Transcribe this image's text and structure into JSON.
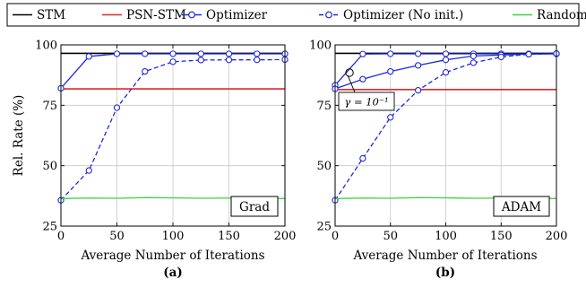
{
  "legend": [
    {
      "name": "STM",
      "color": "#000000",
      "style": "solid",
      "marker": false
    },
    {
      "name": "PSN-STM",
      "color": "#e3262e",
      "style": "solid",
      "marker": false
    },
    {
      "name": "Optimizer",
      "color": "#1f2ad6",
      "style": "solid",
      "marker": true
    },
    {
      "name": "Optimizer (No init.)",
      "color": "#1f2ad6",
      "style": "dashed",
      "marker": true
    },
    {
      "name": "Random",
      "color": "#3bd23b",
      "style": "solid",
      "marker": false
    }
  ],
  "chart_data": [
    {
      "type": "line",
      "panel": "(a)",
      "box_label": "Grad",
      "xlabel": "Average Number of Iterations",
      "ylabel": "Rel. Rate (%)",
      "xlim": [
        0,
        200
      ],
      "ylim": [
        25,
        100
      ],
      "xticks": [
        0,
        50,
        100,
        150,
        200
      ],
      "yticks": [
        25,
        50,
        75,
        100
      ],
      "grid": true,
      "series": [
        {
          "name": "STM",
          "x": [
            0,
            200
          ],
          "y": [
            96.5,
            96.5
          ]
        },
        {
          "name": "PSN-STM",
          "x": [
            0,
            200
          ],
          "y": [
            81.8,
            81.8
          ]
        },
        {
          "name": "Optimizer",
          "x": [
            0,
            25,
            50,
            75,
            100,
            125,
            150,
            175,
            200
          ],
          "y": [
            82,
            95.2,
            96.3,
            96.3,
            96.3,
            96.3,
            96.3,
            96.3,
            96.3
          ]
        },
        {
          "name": "Optimizer (No init.)",
          "x": [
            0,
            25,
            50,
            75,
            100,
            125,
            150,
            175,
            200
          ],
          "y": [
            35.7,
            48,
            74,
            89,
            93,
            93.7,
            93.8,
            93.8,
            93.9
          ]
        },
        {
          "name": "Random",
          "x": [
            0,
            25,
            50,
            75,
            100,
            125,
            150,
            175,
            200
          ],
          "y": [
            36.4,
            36.6,
            36.5,
            36.8,
            36.7,
            36.5,
            36.6,
            36.5,
            36.4
          ]
        }
      ]
    },
    {
      "type": "line",
      "panel": "(b)",
      "box_label": "ADAM",
      "xlabel": "Average Number of Iterations",
      "ylabel": "",
      "xlim": [
        0,
        200
      ],
      "ylim": [
        25,
        100
      ],
      "xticks": [
        0,
        50,
        100,
        150,
        200
      ],
      "yticks": [
        25,
        50,
        75,
        100
      ],
      "grid": true,
      "annotation": {
        "text": "γ = 10⁻¹",
        "x": 13,
        "y": 88.5
      },
      "series": [
        {
          "name": "STM",
          "x": [
            0,
            200
          ],
          "y": [
            96.5,
            96.5
          ]
        },
        {
          "name": "PSN-STM",
          "x": [
            0,
            200
          ],
          "y": [
            81.5,
            81.5
          ]
        },
        {
          "name": "Optimizer",
          "x": [
            0,
            25,
            50,
            75,
            100,
            125,
            150,
            175,
            200
          ],
          "y": [
            83.3,
            96.2,
            96.3,
            96.3,
            96.3,
            96.3,
            96.3,
            96.3,
            96.3
          ]
        },
        {
          "name": "Optimizer",
          "x": [
            0,
            25,
            50,
            75,
            100,
            125,
            150,
            175,
            200
          ],
          "y": [
            81.8,
            85.8,
            89,
            91.5,
            93.8,
            95.4,
            95.8,
            96.2,
            96.3
          ]
        },
        {
          "name": "Optimizer (No init.)",
          "x": [
            0,
            25,
            50,
            75,
            100,
            125,
            150,
            175,
            200
          ],
          "y": [
            35.7,
            53,
            70,
            81.2,
            88.6,
            92.6,
            95,
            96.1,
            96.4
          ]
        },
        {
          "name": "Random",
          "x": [
            0,
            25,
            50,
            75,
            100,
            125,
            150,
            175,
            200
          ],
          "y": [
            36.4,
            36.6,
            36.5,
            36.8,
            36.7,
            36.5,
            36.6,
            36.5,
            36.4
          ]
        }
      ]
    }
  ]
}
